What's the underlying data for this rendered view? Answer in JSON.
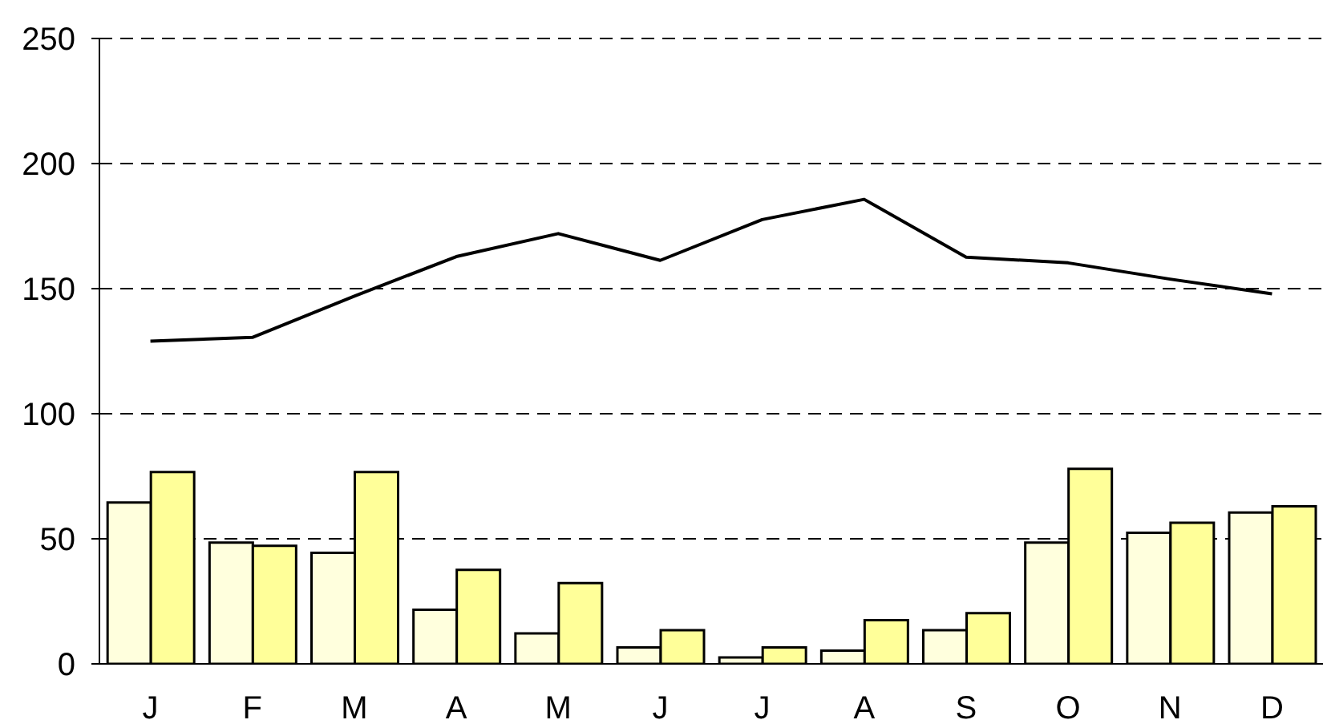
{
  "chart_data": {
    "type": "bar",
    "categories": [
      "J",
      "F",
      "M",
      "A",
      "M",
      "J",
      "J",
      "A",
      "S",
      "O",
      "N",
      "D"
    ],
    "series": [
      {
        "color": "#ffffdd",
        "values": [
          64.5,
          48.5,
          44.4,
          21.6,
          12.2,
          6.6,
          2.6,
          5.3,
          13.5,
          48.5,
          52.4,
          60.5
        ]
      },
      {
        "color": "#ffff99",
        "values": [
          76.7,
          47.2,
          76.7,
          37.6,
          32.3,
          13.5,
          6.6,
          17.5,
          20.3,
          78,
          56.4,
          63
        ]
      },
      {
        "type": "line",
        "color": "#000000",
        "values": [
          129,
          130.5,
          147,
          162.8,
          172,
          161.3,
          177.6,
          185.7,
          162.6,
          160.3,
          153.8,
          147.9
        ]
      }
    ],
    "ylim": [
      0,
      250
    ],
    "yticks": [
      0,
      50,
      100,
      150,
      200,
      250
    ],
    "grid": "y",
    "marker": "none",
    "line_style": "solid"
  }
}
